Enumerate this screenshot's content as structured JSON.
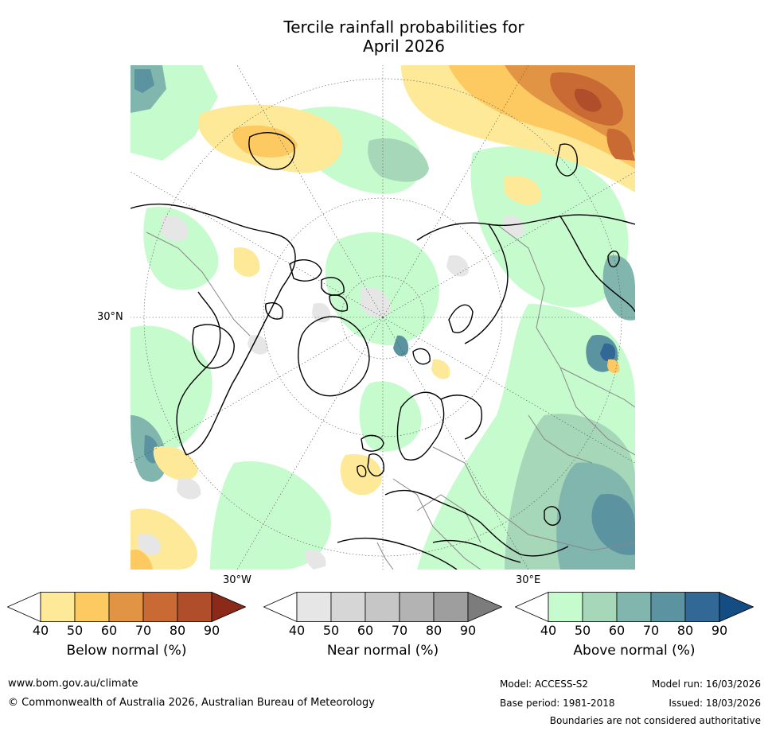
{
  "title": {
    "line1": "Tercile rainfall probabilities for",
    "line2": "April 2026"
  },
  "map": {
    "projection": "north-polar-stereographic",
    "lat_label": "30°N",
    "lon_labels": {
      "west": "30°W",
      "east": "30°E"
    }
  },
  "colorbars": [
    {
      "name": "below-normal",
      "label": "Below normal (%)",
      "ticks": [
        "40",
        "50",
        "60",
        "70",
        "80",
        "90"
      ],
      "colors": [
        "#ffffff",
        "#fee998",
        "#fdca62",
        "#e09444",
        "#c96933",
        "#b04d2a",
        "#8c2a1a"
      ]
    },
    {
      "name": "near-normal",
      "label": "Near normal (%)",
      "ticks": [
        "40",
        "50",
        "60",
        "70",
        "80",
        "90"
      ],
      "colors": [
        "#ffffff",
        "#e6e6e6",
        "#d6d6d6",
        "#c6c6c6",
        "#b3b3b3",
        "#9e9e9e",
        "#7c7c7c"
      ]
    },
    {
      "name": "above-normal",
      "label": "Above normal (%)",
      "ticks": [
        "40",
        "50",
        "60",
        "70",
        "80",
        "90"
      ],
      "colors": [
        "#ffffff",
        "#c6fbcd",
        "#a6d7b9",
        "#80b6ad",
        "#5c93a1",
        "#326896",
        "#144c84"
      ]
    }
  ],
  "footer": {
    "url": "www.bom.gov.au/climate",
    "copyright": "© Commonwealth of Australia 2026, Australian Bureau of Meteorology",
    "model": "Model: ACCESS-S2",
    "base_period": "Base period: 1981-2018",
    "model_run": "Model run: 16/03/2026",
    "issued": "Issued: 18/03/2026",
    "disclaimer": "Boundaries are not considered authoritative"
  }
}
